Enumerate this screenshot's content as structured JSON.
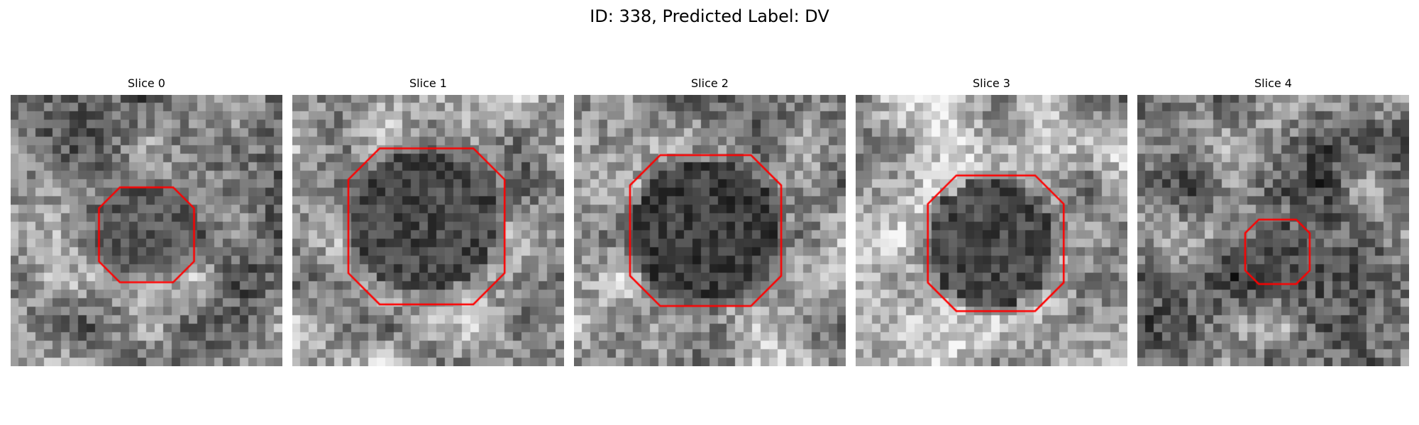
{
  "figure": {
    "title": "ID: 338, Predicted Label: DV"
  },
  "colors": {
    "contour": "#ff0000",
    "background": "#ffffff"
  },
  "panels": [
    {
      "title": "Slice 0",
      "seed": 11,
      "base": 0.52,
      "lesion": {
        "cx": 16.0,
        "cy": 16.0,
        "r": 5.2,
        "lev": 0.34
      },
      "contour": {
        "cx": 16.0,
        "cy": 16.5,
        "r": 5.6,
        "k": 0.44
      }
    },
    {
      "title": "Slice 1",
      "seed": 23,
      "base": 0.62,
      "lesion": {
        "cx": 15.5,
        "cy": 15.0,
        "r": 8.5,
        "lev": 0.28
      },
      "contour": {
        "cx": 15.8,
        "cy": 15.5,
        "r": 9.2,
        "k": 0.4
      }
    },
    {
      "title": "Slice 2",
      "seed": 37,
      "base": 0.6,
      "lesion": {
        "cx": 15.5,
        "cy": 16.0,
        "r": 8.5,
        "lev": 0.24
      },
      "contour": {
        "cx": 15.5,
        "cy": 16.0,
        "r": 8.9,
        "k": 0.4
      }
    },
    {
      "title": "Slice 3",
      "seed": 41,
      "base": 0.64,
      "lesion": {
        "cx": 16.0,
        "cy": 17.5,
        "r": 7.5,
        "lev": 0.28
      },
      "contour": {
        "cx": 16.5,
        "cy": 17.5,
        "r": 8.0,
        "k": 0.42
      }
    },
    {
      "title": "Slice 4",
      "seed": 59,
      "base": 0.48,
      "lesion": {
        "cx": 16.5,
        "cy": 18.5,
        "r": 3.6,
        "lev": 0.3
      },
      "contour": {
        "cx": 16.5,
        "cy": 18.5,
        "r": 3.8,
        "k": 0.42
      }
    }
  ]
}
